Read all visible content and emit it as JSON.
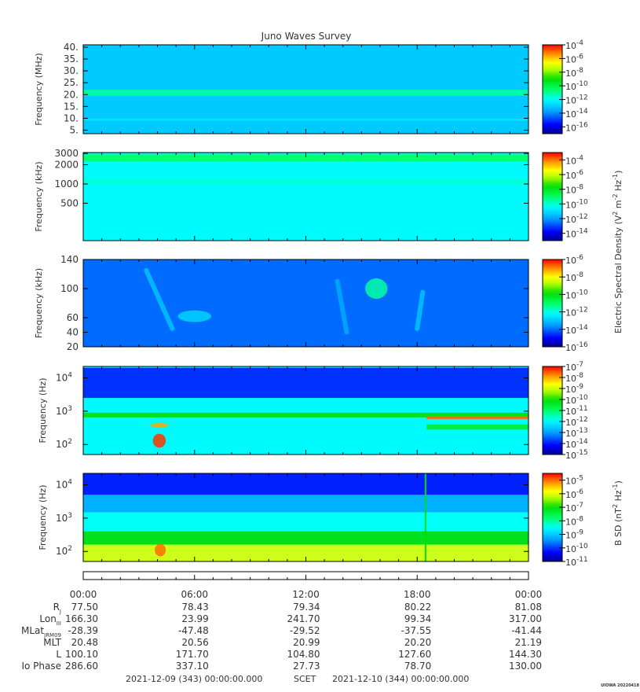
{
  "chart_data": {
    "type": "heatmap",
    "title": "Juno Waves Survey",
    "credit": "UIOWA 20220418",
    "time_axis": {
      "ticks": [
        "00:00",
        "06:00",
        "12:00",
        "18:00",
        "00:00"
      ],
      "range_hours": [
        0,
        24
      ],
      "start_label": "2021-12-09 (343) 00:00:00.000",
      "scet_label": "SCET",
      "end_label": "2021-12-10 (344) 00:00:00.000"
    },
    "ephemeris": [
      {
        "label": "R",
        "sub": "J",
        "values": [
          "77.50",
          "78.43",
          "79.34",
          "80.22",
          "81.08"
        ]
      },
      {
        "label": "Lon",
        "sub": "III",
        "values": [
          "166.30",
          "23.99",
          "241.70",
          "99.34",
          "317.00"
        ]
      },
      {
        "label": "MLat",
        "sub": "JRM09",
        "values": [
          "-28.39",
          "-47.48",
          "-29.52",
          "-37.55",
          "-41.44"
        ]
      },
      {
        "label": "MLT",
        "sub": "",
        "values": [
          "20.48",
          "20.56",
          "20.99",
          "20.20",
          "21.19"
        ]
      },
      {
        "label": "L",
        "sub": "",
        "values": [
          "100.10",
          "171.70",
          "104.80",
          "127.60",
          "144.30"
        ]
      },
      {
        "label": "Io Phase",
        "sub": "",
        "values": [
          "286.60",
          "337.10",
          "27.73",
          "78.70",
          "130.00"
        ]
      }
    ],
    "panels": [
      {
        "ylabel": "Frequency (MHz)",
        "yscale": "linear",
        "ylim": [
          3.5,
          41
        ],
        "yticks": [
          "5.",
          "10.",
          "15.",
          "20.",
          "25.",
          "30.",
          "35.",
          "40."
        ],
        "ytick_values": [
          5,
          10,
          15,
          20,
          25,
          30,
          35,
          40
        ],
        "colorbar_exponents": [
          "-4",
          "-6",
          "-8",
          "-10",
          "-12",
          "-14",
          "-16"
        ],
        "colorbar_range_exp": [
          -17,
          -4
        ],
        "background_level_exp": -13,
        "features": [
          {
            "kind": "band",
            "y": [
              19.5,
              22.0
            ],
            "level_exp": -11
          },
          {
            "kind": "band",
            "y": [
              9.0,
              9.8
            ],
            "level_exp": -12.5
          }
        ]
      },
      {
        "ylabel": "Frequency (kHz)",
        "yscale": "log",
        "ylim": [
          130,
          3100
        ],
        "yticks": [
          "3000",
          "2000",
          "1000",
          "500"
        ],
        "ytick_values": [
          3000,
          2000,
          1000,
          500
        ],
        "colorbar_exponents": [
          "-4",
          "-6",
          "-8",
          "-10",
          "-12",
          "-14"
        ],
        "colorbar_range_exp": [
          -15,
          -3
        ],
        "background_level_exp": -10.5,
        "features": [
          {
            "kind": "band",
            "y": [
              2250,
              2900
            ],
            "level_exp": -9
          },
          {
            "kind": "band",
            "y": [
              1000,
              1180
            ],
            "level_exp": -10
          }
        ]
      },
      {
        "ylabel": "Frequency (kHz)",
        "yscale": "linear",
        "ylim": [
          20,
          140
        ],
        "yticks": [
          "140",
          "100",
          "60",
          "40",
          "20"
        ],
        "ytick_values": [
          140,
          100,
          60,
          40,
          20
        ],
        "colorbar_exponents": [
          "-6",
          "-8",
          "-10",
          "-12",
          "-14",
          "-16"
        ],
        "colorbar_range_exp": [
          -16,
          -6
        ],
        "background_level_exp": -14,
        "features": [
          {
            "kind": "blob",
            "t": 15.8,
            "f": 100,
            "dt": 0.6,
            "df": 14,
            "level_exp": -11.5
          },
          {
            "kind": "blob",
            "t": 6.0,
            "f": 62,
            "dt": 0.9,
            "df": 8,
            "level_exp": -12.8
          },
          {
            "kind": "streak",
            "t": [
              3.4,
              4.8
            ],
            "f": [
              125,
              45
            ],
            "level_exp": -12.5
          },
          {
            "kind": "streak",
            "t": [
              18.3,
              18.0
            ],
            "f": [
              95,
              45
            ],
            "level_exp": -12.5
          },
          {
            "kind": "streak",
            "t": [
              13.7,
              14.2
            ],
            "f": [
              110,
              40
            ],
            "level_exp": -13
          }
        ]
      },
      {
        "ylabel": "Frequency (Hz)",
        "yscale": "log",
        "ylim": [
          50,
          22000
        ],
        "yticks": [
          "10",
          "10",
          "10"
        ],
        "ytick_exponents": [
          "4",
          "3",
          "2"
        ],
        "ytick_values": [
          10000,
          1000,
          100
        ],
        "colorbar_exponents": [
          "-7",
          "-8",
          "-9",
          "-10",
          "-11",
          "-12",
          "-13",
          "-14",
          "-15"
        ],
        "colorbar_range_exp": [
          -15,
          -7
        ],
        "background_level_exp": -12,
        "features": [
          {
            "kind": "band",
            "y": [
              2500,
              20000
            ],
            "level_exp": -14
          },
          {
            "kind": "band",
            "y": [
              650,
              900
            ],
            "level_exp": -10
          },
          {
            "kind": "band",
            "t": [
              18.5,
              24
            ],
            "y": [
              580,
              680
            ],
            "level_exp": -7.6
          },
          {
            "kind": "band",
            "t": [
              18.5,
              24
            ],
            "y": [
              280,
              400
            ],
            "level_exp": -10.5
          },
          {
            "kind": "blob",
            "t": 4.1,
            "f": 130,
            "dt": 0.35,
            "df": 80,
            "level_exp": -7.3
          },
          {
            "kind": "blob",
            "t": 4.1,
            "f": 380,
            "dt": 0.5,
            "df": 60,
            "level_exp": -8
          }
        ]
      },
      {
        "ylabel": "B SD (nT",
        "ylabel_note": "Frequency (Hz)",
        "yscale": "log",
        "ylim": [
          50,
          22000
        ],
        "yticks": [
          "10",
          "10",
          "10"
        ],
        "ytick_exponents": [
          "4",
          "3",
          "2"
        ],
        "ytick_values": [
          10000,
          1000,
          100
        ],
        "colorbar_exponents": [
          "-5",
          "-6",
          "-7",
          "-8",
          "-9",
          "-10",
          "-11"
        ],
        "colorbar_range_exp": [
          -11,
          -4.5
        ],
        "background_level_exp": -8.5,
        "features": [
          {
            "kind": "band",
            "y": [
              5000,
              22000
            ],
            "level_exp": -10.3
          },
          {
            "kind": "band",
            "y": [
              1500,
              5000
            ],
            "level_exp": -9.3
          },
          {
            "kind": "band",
            "y": [
              160,
              400
            ],
            "level_exp": -7
          },
          {
            "kind": "band",
            "y": [
              50,
              160
            ],
            "level_exp": -6
          },
          {
            "kind": "blob",
            "t": 4.15,
            "f": 110,
            "dt": 0.3,
            "df": 60,
            "level_exp": -5
          },
          {
            "kind": "line",
            "t": 18.45,
            "level_exp": -7
          }
        ]
      }
    ],
    "colorbar_title_upper": "Electric Spectral Density (V",
    "colorbar_title_lower": "B SD (nT"
  }
}
